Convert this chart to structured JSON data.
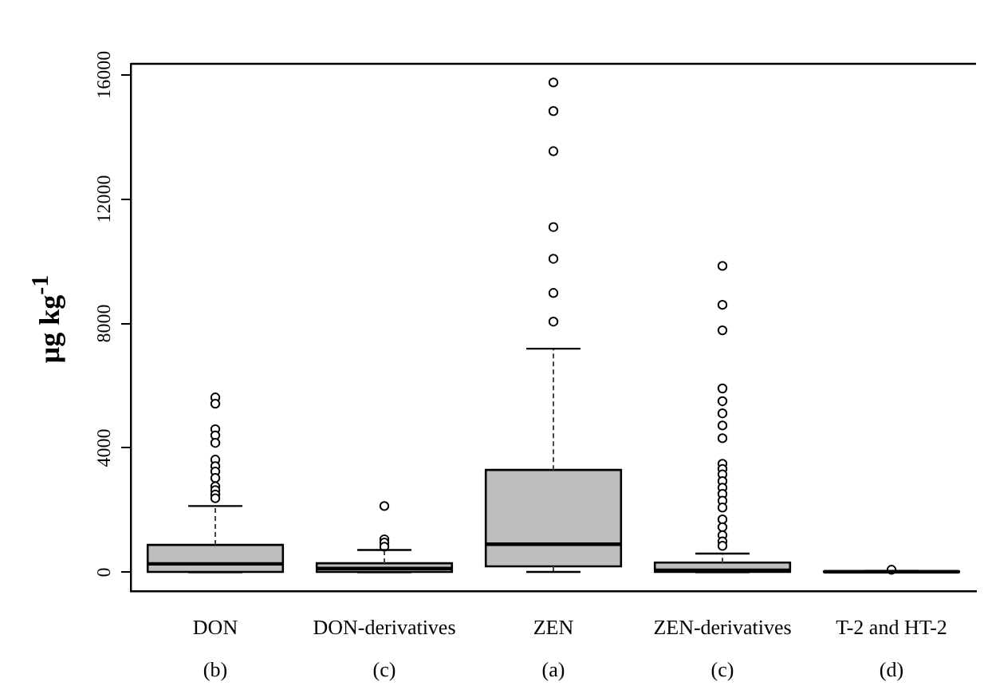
{
  "chart_data": {
    "type": "box",
    "ylabel": "μg kg$^{-1}$",
    "categories": [
      "DON",
      "DON-derivatives",
      "ZEN",
      "ZEN-derivatives",
      "T-2 and HT-2"
    ],
    "series": [
      {
        "color": "#bebebe",
        "boxes": [
          {
            "low": 5,
            "q1": 10,
            "median": 270,
            "q3": 880,
            "high": 2130,
            "outliers": [
              5620,
              5420,
              4600,
              4400,
              4160,
              3620,
              3410,
              3240,
              3030,
              2760,
              2640,
              2500,
              2380
            ]
          },
          {
            "low": 5,
            "q1": 10,
            "median": 120,
            "q3": 290,
            "high": 715,
            "outliers": [
              2130,
              1060,
              955,
              820
            ]
          },
          {
            "low": 10,
            "q1": 190,
            "median": 900,
            "q3": 3290,
            "high": 7190,
            "outliers": [
              15750,
              14830,
              13540,
              11100,
              10080,
              8980,
              8060
            ]
          },
          {
            "low": 5,
            "q1": 10,
            "median": 60,
            "q3": 310,
            "high": 600,
            "outliers": [
              9850,
              8600,
              7780,
              5910,
              5500,
              5110,
              4720,
              4310,
              3490,
              3320,
              3150,
              2930,
              2720,
              2520,
              2300,
              2080,
              1700,
              1450,
              1190,
              990,
              850
            ]
          },
          {
            "low": 5,
            "q1": 10,
            "median": 15,
            "q3": 20,
            "high": 40,
            "outliers": [
              80
            ]
          }
        ]
      }
    ],
    "ylim": [
      -600,
      16350
    ],
    "yticks": [
      0,
      4000,
      8000,
      12000,
      16000
    ],
    "grid": false,
    "annotations": [
      "(b)",
      "(c)",
      "(a)",
      "(c)",
      "(d)"
    ]
  }
}
